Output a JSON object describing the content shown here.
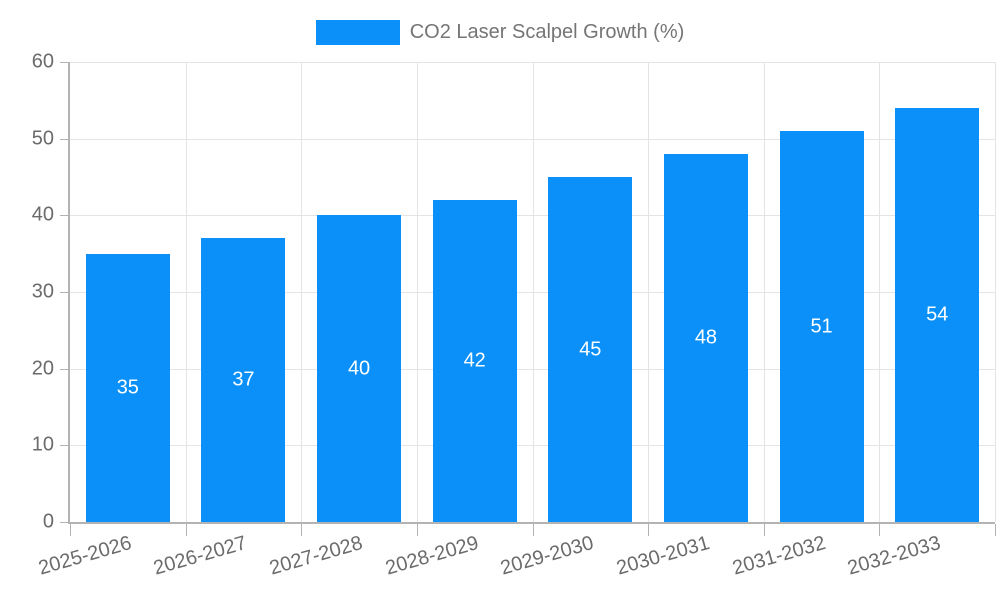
{
  "chart_data": {
    "type": "bar",
    "title": "",
    "legend": [
      {
        "label": "CO2 Laser Scalpel Growth (%)",
        "color": "#0a90f8"
      }
    ],
    "legend_position": "top-center",
    "categories": [
      "2025-2026",
      "2026-2027",
      "2027-2028",
      "2028-2029",
      "2029-2030",
      "2030-2031",
      "2031-2032",
      "2032-2033"
    ],
    "series": [
      {
        "name": "CO2 Laser Scalpel Growth (%)",
        "values": [
          35,
          37,
          40,
          42,
          45,
          48,
          51,
          54
        ]
      }
    ],
    "value_labels_shown": true,
    "value_label_position": "middle-of-bar",
    "xlabel": "",
    "ylabel": "",
    "ylim": [
      0,
      60
    ],
    "ytick_step": 10,
    "yticks": [
      0,
      10,
      20,
      30,
      40,
      50,
      60
    ],
    "grid": true,
    "x_label_rotation_deg": -16,
    "colors": {
      "bar": "#0a90f8",
      "value_label": "#ffffff",
      "axis_text": "#6b6b6b",
      "legend_text": "#757575",
      "grid_line": "#e4e4e4",
      "axis_line": "#b3b3b3",
      "background": "#ffffff"
    }
  }
}
